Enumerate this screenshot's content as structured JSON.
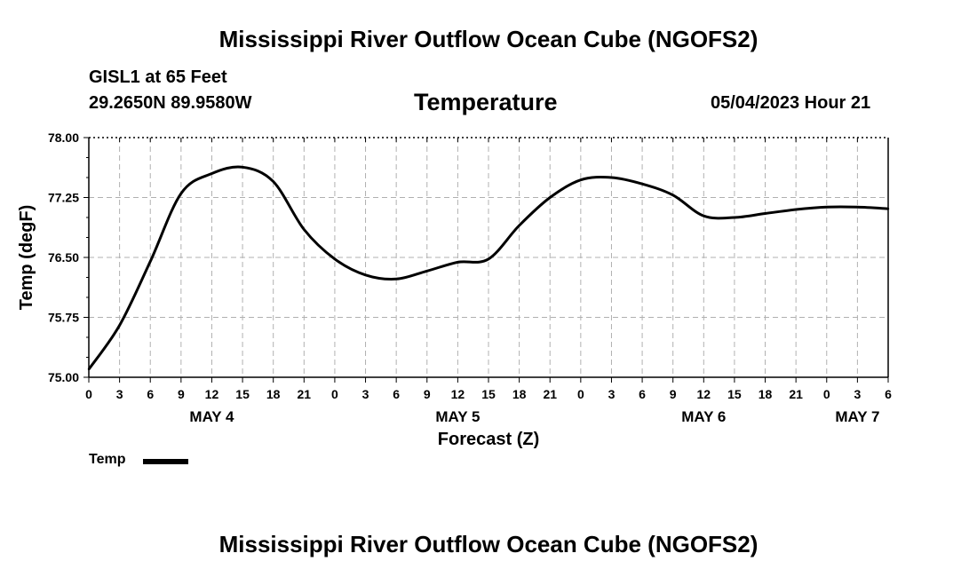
{
  "header": {
    "title": "Mississippi River Outflow Ocean Cube (NGOFS2)",
    "station_name": "GISL1 at 65 Feet",
    "station_coords": "29.2650N  89.9580W",
    "chart_title": "Temperature",
    "timestamp": "05/04/2023 Hour 21"
  },
  "footer": {
    "title": "Mississippi River Outflow Ocean Cube (NGOFS2)"
  },
  "legend": {
    "label": "Temp",
    "color": "#000000"
  },
  "chart_data": {
    "type": "line",
    "title": "Temperature",
    "xlabel": "Forecast (Z)",
    "ylabel": "Temp (degF)",
    "ylim": [
      75.0,
      78.0
    ],
    "xlim": [
      0,
      78
    ],
    "x_units": "hours since 05/04/2023 00Z",
    "grid": true,
    "yticks": [
      {
        "value": 75.0,
        "label": "75.00"
      },
      {
        "value": 75.75,
        "label": "75.75"
      },
      {
        "value": 76.5,
        "label": "76.50"
      },
      {
        "value": 77.25,
        "label": "77.25"
      },
      {
        "value": 78.0,
        "label": "78.00"
      }
    ],
    "xticks": [
      {
        "value": 0,
        "label": "0"
      },
      {
        "value": 3,
        "label": "3"
      },
      {
        "value": 6,
        "label": "6"
      },
      {
        "value": 9,
        "label": "9"
      },
      {
        "value": 12,
        "label": "12"
      },
      {
        "value": 15,
        "label": "15"
      },
      {
        "value": 18,
        "label": "18"
      },
      {
        "value": 21,
        "label": "21"
      },
      {
        "value": 24,
        "label": "0"
      },
      {
        "value": 27,
        "label": "3"
      },
      {
        "value": 30,
        "label": "6"
      },
      {
        "value": 33,
        "label": "9"
      },
      {
        "value": 36,
        "label": "12"
      },
      {
        "value": 39,
        "label": "15"
      },
      {
        "value": 42,
        "label": "18"
      },
      {
        "value": 45,
        "label": "21"
      },
      {
        "value": 48,
        "label": "0"
      },
      {
        "value": 51,
        "label": "3"
      },
      {
        "value": 54,
        "label": "6"
      },
      {
        "value": 57,
        "label": "9"
      },
      {
        "value": 60,
        "label": "12"
      },
      {
        "value": 63,
        "label": "15"
      },
      {
        "value": 66,
        "label": "18"
      },
      {
        "value": 69,
        "label": "21"
      },
      {
        "value": 72,
        "label": "0"
      },
      {
        "value": 75,
        "label": "3"
      },
      {
        "value": 78,
        "label": "6"
      }
    ],
    "day_labels": [
      {
        "value": 12,
        "label": "MAY 4"
      },
      {
        "value": 36,
        "label": "MAY 5"
      },
      {
        "value": 60,
        "label": "MAY 6"
      },
      {
        "value": 75,
        "label": "MAY 7"
      }
    ],
    "series": [
      {
        "name": "Temp",
        "x": [
          0,
          3,
          6,
          9,
          12,
          15,
          18,
          21,
          24,
          27,
          30,
          33,
          36,
          39,
          42,
          45,
          48,
          51,
          54,
          57,
          60,
          63,
          66,
          69,
          72,
          75,
          78
        ],
        "values": [
          75.1,
          75.65,
          76.45,
          77.3,
          77.55,
          77.63,
          77.45,
          76.85,
          76.48,
          76.28,
          76.23,
          76.33,
          76.44,
          76.48,
          76.9,
          77.25,
          77.47,
          77.5,
          77.42,
          77.28,
          77.02,
          77.0,
          77.05,
          77.1,
          77.13,
          77.13,
          77.11
        ]
      }
    ]
  }
}
